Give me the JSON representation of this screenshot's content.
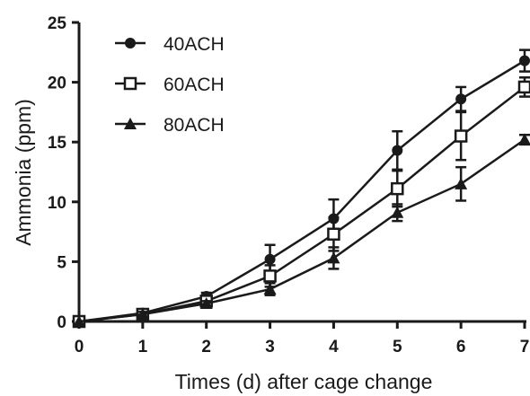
{
  "chart_data": {
    "type": "line",
    "xlabel": "Times (d) after cage change",
    "ylabel": "Ammonia (ppm)",
    "x": [
      0,
      1,
      2,
      3,
      4,
      5,
      6,
      7
    ],
    "xlim": [
      0,
      7
    ],
    "ylim": [
      0,
      25
    ],
    "xticks": [
      "0",
      "1",
      "2",
      "3",
      "4",
      "5",
      "6",
      "7"
    ],
    "yticks": [
      "0",
      "5",
      "10",
      "15",
      "20",
      "25"
    ],
    "grid": false,
    "legend_position": "top-left",
    "series": [
      {
        "name": "40ACH",
        "marker": "filled-circle",
        "values": [
          0,
          0.7,
          2.1,
          5.2,
          8.6,
          14.3,
          18.6,
          21.8
        ],
        "error": [
          0,
          0.2,
          0.3,
          1.2,
          1.6,
          1.6,
          1.0,
          0.9
        ]
      },
      {
        "name": "60ACH",
        "marker": "open-square",
        "values": [
          0,
          0.6,
          1.7,
          3.8,
          7.3,
          11.1,
          15.5,
          19.6
        ],
        "error": [
          0,
          0.2,
          0.3,
          0.9,
          1.4,
          1.5,
          2.0,
          0.8
        ]
      },
      {
        "name": "80ACH",
        "marker": "filled-triangle",
        "values": [
          0,
          0.6,
          1.5,
          2.7,
          5.3,
          9.1,
          11.5,
          15.2
        ],
        "error": [
          0,
          0.2,
          0.2,
          0.5,
          0.9,
          0.7,
          1.4,
          0.4
        ]
      }
    ]
  }
}
